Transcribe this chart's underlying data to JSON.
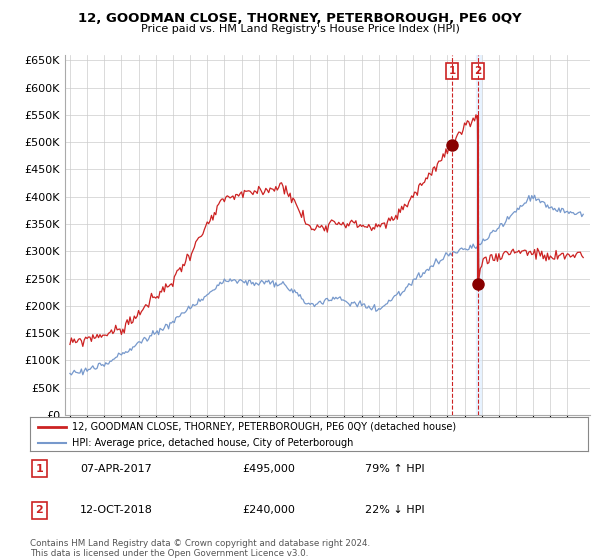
{
  "title": "12, GOODMAN CLOSE, THORNEY, PETERBOROUGH, PE6 0QY",
  "subtitle": "Price paid vs. HM Land Registry's House Price Index (HPI)",
  "legend_line1": "12, GOODMAN CLOSE, THORNEY, PETERBOROUGH, PE6 0QY (detached house)",
  "legend_line2": "HPI: Average price, detached house, City of Peterborough",
  "annotation1_label": "1",
  "annotation1_date": "07-APR-2017",
  "annotation1_price": "£495,000",
  "annotation1_hpi": "79% ↑ HPI",
  "annotation2_label": "2",
  "annotation2_date": "12-OCT-2018",
  "annotation2_price": "£240,000",
  "annotation2_hpi": "22% ↓ HPI",
  "footer": "Contains HM Land Registry data © Crown copyright and database right 2024.\nThis data is licensed under the Open Government Licence v3.0.",
  "red_color": "#cc2222",
  "blue_color": "#7799cc",
  "annotation_color": "#cc2222",
  "grid_color": "#cccccc",
  "background_color": "#ffffff",
  "plot_bg_color": "#ffffff",
  "ylim": [
    0,
    660000
  ],
  "ytick_step": 50000,
  "sale1_year": 2017.27,
  "sale1_price": 495000,
  "sale2_year": 2018.79,
  "sale2_price": 240000
}
